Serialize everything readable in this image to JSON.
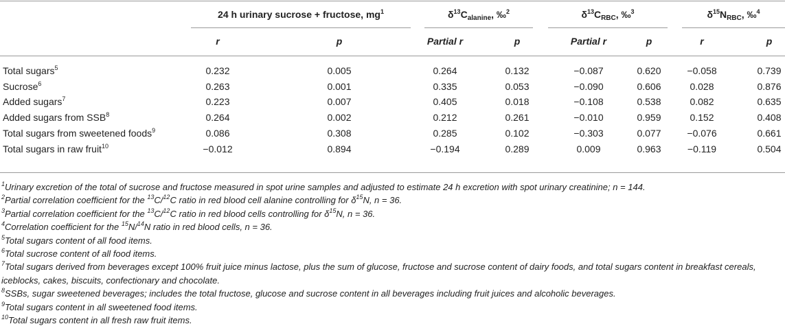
{
  "table": {
    "groups": [
      [
        {
          "text": "24 h urinary sucrose + fructose, mg"
        },
        {
          "text": "1",
          "pos": "sup"
        }
      ],
      [
        {
          "text": "δ"
        },
        {
          "text": "13",
          "pos": "sup"
        },
        {
          "text": "C"
        },
        {
          "text": "alanine",
          "pos": "sub"
        },
        {
          "text": ", ‰"
        },
        {
          "text": "2",
          "pos": "sup"
        }
      ],
      [
        {
          "text": "δ"
        },
        {
          "text": "13",
          "pos": "sup"
        },
        {
          "text": "C"
        },
        {
          "text": "RBC",
          "pos": "sub"
        },
        {
          "text": ", ‰"
        },
        {
          "text": "3",
          "pos": "sup"
        }
      ],
      [
        {
          "text": "δ"
        },
        {
          "text": "15",
          "pos": "sup"
        },
        {
          "text": "N"
        },
        {
          "text": "RBC",
          "pos": "sub"
        },
        {
          "text": ", ‰"
        },
        {
          "text": "4",
          "pos": "sup"
        }
      ]
    ],
    "subheaders": [
      "r",
      "p",
      "Partial r",
      "p",
      "Partial r",
      "p",
      "r",
      "p"
    ],
    "rows": [
      {
        "label": [
          {
            "text": "Total sugars"
          },
          {
            "text": "5",
            "pos": "sup"
          }
        ],
        "cells": [
          "0.232",
          "0.005",
          "0.264",
          "0.132",
          "−0.087",
          "0.620",
          "−0.058",
          "0.739"
        ]
      },
      {
        "label": [
          {
            "text": "Sucrose"
          },
          {
            "text": "6",
            "pos": "sup"
          }
        ],
        "cells": [
          "0.263",
          "0.001",
          "0.335",
          "0.053",
          "−0.090",
          "0.606",
          "0.028",
          "0.876"
        ]
      },
      {
        "label": [
          {
            "text": "Added sugars"
          },
          {
            "text": "7",
            "pos": "sup"
          }
        ],
        "cells": [
          "0.223",
          "0.007",
          "0.405",
          "0.018",
          "−0.108",
          "0.538",
          "0.082",
          "0.635"
        ]
      },
      {
        "label": [
          {
            "text": "Added sugars from SSB"
          },
          {
            "text": "8",
            "pos": "sup"
          }
        ],
        "cells": [
          "0.264",
          "0.002",
          "0.212",
          "0.261",
          "−0.010",
          "0.959",
          "0.152",
          "0.408"
        ]
      },
      {
        "label": [
          {
            "text": "Total sugars from sweetened foods"
          },
          {
            "text": "9",
            "pos": "sup"
          }
        ],
        "cells": [
          "0.086",
          "0.308",
          "0.285",
          "0.102",
          "−0.303",
          "0.077",
          "−0.076",
          "0.661"
        ]
      },
      {
        "label": [
          {
            "text": "Total sugars in raw fruit"
          },
          {
            "text": "10",
            "pos": "sup"
          }
        ],
        "cells": [
          "−0.012",
          "0.894",
          "−0.194",
          "0.289",
          "0.009",
          "0.963",
          "−0.119",
          "0.504"
        ]
      }
    ]
  },
  "footnotes": [
    [
      {
        "text": "1",
        "pos": "sup"
      },
      {
        "text": "Urinary excretion of the total of sucrose and fructose measured in spot urine samples and adjusted to estimate 24 h excretion with spot urinary creatinine; n = 144."
      }
    ],
    [
      {
        "text": "2",
        "pos": "sup"
      },
      {
        "text": "Partial correlation coefficient for the "
      },
      {
        "text": "13",
        "pos": "sup"
      },
      {
        "text": "C/"
      },
      {
        "text": "12",
        "pos": "sup"
      },
      {
        "text": "C ratio in red blood cell alanine controlling for δ"
      },
      {
        "text": "15",
        "pos": "sup"
      },
      {
        "text": "N, n = 36."
      }
    ],
    [
      {
        "text": "3",
        "pos": "sup"
      },
      {
        "text": "Partial correlation coefficient for the "
      },
      {
        "text": "13",
        "pos": "sup"
      },
      {
        "text": "C/"
      },
      {
        "text": "12",
        "pos": "sup"
      },
      {
        "text": "C ratio in red blood cells controlling for δ"
      },
      {
        "text": "15",
        "pos": "sup"
      },
      {
        "text": "N, n = 36."
      }
    ],
    [
      {
        "text": "4",
        "pos": "sup"
      },
      {
        "text": "Correlation coefficient for the "
      },
      {
        "text": "15",
        "pos": "sup"
      },
      {
        "text": "N/"
      },
      {
        "text": "14",
        "pos": "sup"
      },
      {
        "text": "N ratio in red blood cells, n = 36."
      }
    ],
    [
      {
        "text": "5",
        "pos": "sup"
      },
      {
        "text": "Total sugars content of all food items."
      }
    ],
    [
      {
        "text": "6",
        "pos": "sup"
      },
      {
        "text": "Total sucrose content of all food items."
      }
    ],
    [
      {
        "text": "7",
        "pos": "sup"
      },
      {
        "text": "Total sugars derived from beverages except 100% fruit juice minus lactose, plus the sum of glucose, fructose and sucrose content of dairy foods, and total sugars content in breakfast cereals, iceblocks, cakes, biscuits, confectionary and chocolate."
      }
    ],
    [
      {
        "text": "8",
        "pos": "sup"
      },
      {
        "text": "SSBs, sugar sweetened beverages; includes the total fructose, glucose and sucrose content in all beverages including fruit juices and alcoholic beverages."
      }
    ],
    [
      {
        "text": "9",
        "pos": "sup"
      },
      {
        "text": "Total sugars content in all sweetened food items."
      }
    ],
    [
      {
        "text": "10",
        "pos": "sup"
      },
      {
        "text": "Total sugars content in all fresh raw fruit items."
      }
    ]
  ]
}
